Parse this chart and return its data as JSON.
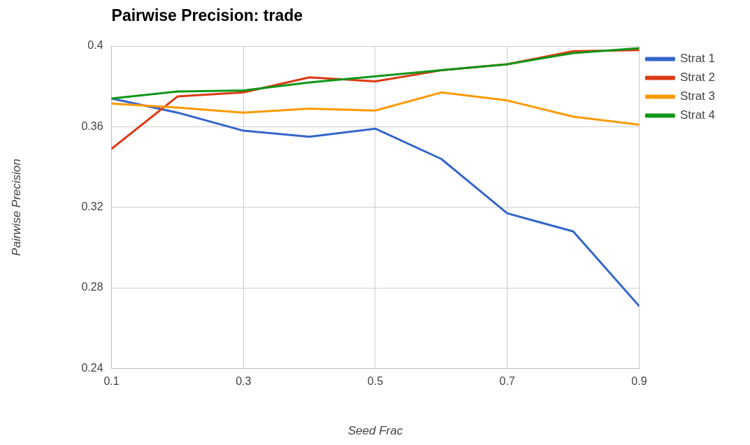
{
  "chart_data": {
    "type": "line",
    "title": "Pairwise Precision: trade",
    "xlabel": "Seed Frac",
    "ylabel": "Pairwise Precision",
    "x": [
      0.1,
      0.2,
      0.3,
      0.4,
      0.5,
      0.6,
      0.7,
      0.8,
      0.9
    ],
    "series": [
      {
        "name": "Strat 1",
        "color": "#3366cc",
        "values": [
          0.374,
          0.367,
          0.358,
          0.355,
          0.359,
          0.344,
          0.317,
          0.308,
          0.271
        ]
      },
      {
        "name": "Strat 2",
        "color": "#dc3912",
        "values": [
          0.349,
          0.375,
          0.377,
          0.3845,
          0.3825,
          0.388,
          0.391,
          0.3975,
          0.398
        ]
      },
      {
        "name": "Strat 3",
        "color": "#ff9900",
        "values": [
          0.3715,
          0.3695,
          0.367,
          0.369,
          0.368,
          0.377,
          0.373,
          0.365,
          0.361
        ]
      },
      {
        "name": "Strat 4",
        "color": "#109618",
        "values": [
          0.374,
          0.3775,
          0.378,
          0.382,
          0.385,
          0.388,
          0.391,
          0.3965,
          0.399
        ]
      }
    ],
    "xlim": [
      0.1,
      0.9
    ],
    "xticks": [
      0.1,
      0.3,
      0.5,
      0.7,
      0.9
    ],
    "ylim": [
      0.24,
      0.4
    ],
    "yticks": [
      0.24,
      0.28,
      0.32,
      0.36,
      0.4
    ],
    "grid": true,
    "legend": "right",
    "marker": "none",
    "line_style": "solid"
  }
}
